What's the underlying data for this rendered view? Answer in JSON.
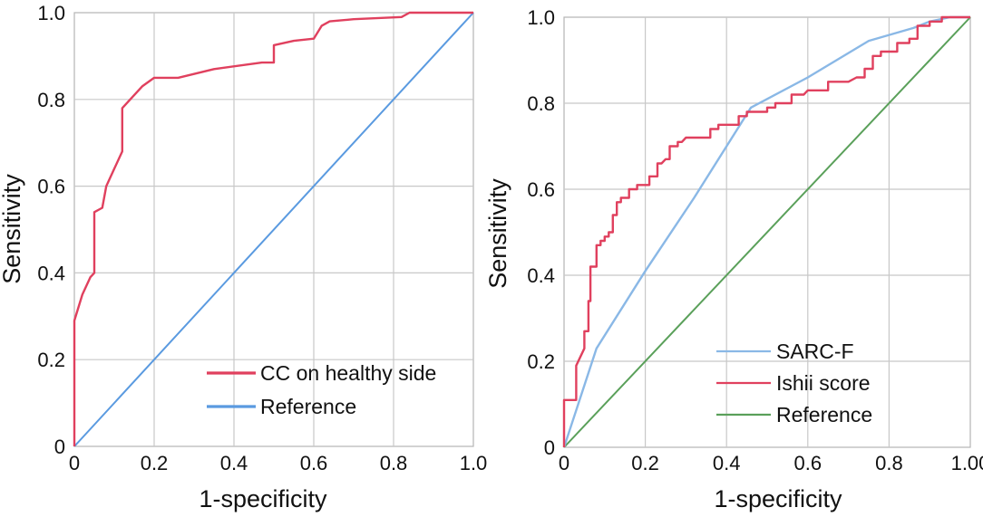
{
  "chart_data": [
    {
      "type": "line",
      "title": "",
      "xlabel": "1-specificity",
      "ylabel": "Sensitivity",
      "xlim": [
        0,
        1
      ],
      "ylim": [
        0,
        1
      ],
      "grid": true,
      "legend_position": "bottom-right",
      "x_tick_labels": [
        "0",
        "0.2",
        "0.4",
        "0.6",
        "0.8",
        "1.0"
      ],
      "y_tick_labels": [
        "0",
        "0.2",
        "0.4",
        "0.6",
        "0.8",
        "1.0"
      ],
      "series": [
        {
          "name": "CC on healthy side",
          "color": "#e0405e",
          "points": [
            [
              0,
              0
            ],
            [
              0,
              0.29
            ],
            [
              0.02,
              0.35
            ],
            [
              0.04,
              0.39
            ],
            [
              0.05,
              0.4
            ],
            [
              0.05,
              0.54
            ],
            [
              0.07,
              0.55
            ],
            [
              0.08,
              0.6
            ],
            [
              0.1,
              0.64
            ],
            [
              0.12,
              0.68
            ],
            [
              0.12,
              0.78
            ],
            [
              0.14,
              0.8
            ],
            [
              0.17,
              0.83
            ],
            [
              0.2,
              0.85
            ],
            [
              0.26,
              0.85
            ],
            [
              0.35,
              0.87
            ],
            [
              0.47,
              0.885
            ],
            [
              0.5,
              0.885
            ],
            [
              0.5,
              0.925
            ],
            [
              0.55,
              0.935
            ],
            [
              0.6,
              0.94
            ],
            [
              0.62,
              0.97
            ],
            [
              0.64,
              0.98
            ],
            [
              0.7,
              0.985
            ],
            [
              0.82,
              0.99
            ],
            [
              0.84,
              1.0
            ],
            [
              1,
              1
            ]
          ]
        },
        {
          "name": "Reference",
          "color": "#5a9ae0",
          "points": [
            [
              0,
              0
            ],
            [
              1,
              1
            ]
          ]
        }
      ]
    },
    {
      "type": "line",
      "title": "",
      "xlabel": "1-specificity",
      "ylabel": "Sensitivity",
      "xlim": [
        0,
        1
      ],
      "ylim": [
        0,
        1
      ],
      "grid": true,
      "legend_position": "bottom-right",
      "x_tick_labels": [
        "0",
        "0.2",
        "0.4",
        "0.6",
        "0.8",
        "1.00"
      ],
      "y_tick_labels": [
        "0",
        "0.2",
        "0.4",
        "0.6",
        "0.8",
        "1.0"
      ],
      "series": [
        {
          "name": "SARC-F",
          "color": "#8ab8e6",
          "points": [
            [
              0,
              0
            ],
            [
              0.08,
              0.23
            ],
            [
              0.2,
              0.41
            ],
            [
              0.32,
              0.58
            ],
            [
              0.46,
              0.79
            ],
            [
              0.6,
              0.86
            ],
            [
              0.75,
              0.945
            ],
            [
              0.86,
              0.975
            ],
            [
              0.9,
              0.99
            ],
            [
              0.95,
              1.0
            ],
            [
              1,
              1
            ]
          ]
        },
        {
          "name": "Ishii score",
          "color": "#e0405e",
          "points": [
            [
              0,
              0
            ],
            [
              0,
              0.11
            ],
            [
              0.03,
              0.11
            ],
            [
              0.03,
              0.19
            ],
            [
              0.04,
              0.21
            ],
            [
              0.05,
              0.23
            ],
            [
              0.05,
              0.27
            ],
            [
              0.06,
              0.27
            ],
            [
              0.06,
              0.34
            ],
            [
              0.065,
              0.34
            ],
            [
              0.065,
              0.42
            ],
            [
              0.08,
              0.42
            ],
            [
              0.08,
              0.47
            ],
            [
              0.09,
              0.47
            ],
            [
              0.09,
              0.48
            ],
            [
              0.1,
              0.48
            ],
            [
              0.1,
              0.49
            ],
            [
              0.11,
              0.49
            ],
            [
              0.11,
              0.5
            ],
            [
              0.12,
              0.5
            ],
            [
              0.12,
              0.54
            ],
            [
              0.13,
              0.54
            ],
            [
              0.13,
              0.57
            ],
            [
              0.14,
              0.57
            ],
            [
              0.14,
              0.58
            ],
            [
              0.16,
              0.58
            ],
            [
              0.16,
              0.6
            ],
            [
              0.18,
              0.6
            ],
            [
              0.18,
              0.61
            ],
            [
              0.21,
              0.61
            ],
            [
              0.21,
              0.63
            ],
            [
              0.23,
              0.63
            ],
            [
              0.23,
              0.66
            ],
            [
              0.24,
              0.66
            ],
            [
              0.25,
              0.67
            ],
            [
              0.26,
              0.67
            ],
            [
              0.26,
              0.7
            ],
            [
              0.28,
              0.7
            ],
            [
              0.28,
              0.71
            ],
            [
              0.29,
              0.71
            ],
            [
              0.3,
              0.72
            ],
            [
              0.36,
              0.72
            ],
            [
              0.36,
              0.74
            ],
            [
              0.38,
              0.74
            ],
            [
              0.38,
              0.75
            ],
            [
              0.43,
              0.75
            ],
            [
              0.43,
              0.77
            ],
            [
              0.45,
              0.77
            ],
            [
              0.45,
              0.78
            ],
            [
              0.5,
              0.78
            ],
            [
              0.5,
              0.79
            ],
            [
              0.52,
              0.79
            ],
            [
              0.52,
              0.8
            ],
            [
              0.56,
              0.8
            ],
            [
              0.56,
              0.82
            ],
            [
              0.59,
              0.82
            ],
            [
              0.6,
              0.83
            ],
            [
              0.65,
              0.83
            ],
            [
              0.65,
              0.85
            ],
            [
              0.7,
              0.85
            ],
            [
              0.72,
              0.86
            ],
            [
              0.74,
              0.86
            ],
            [
              0.74,
              0.88
            ],
            [
              0.76,
              0.88
            ],
            [
              0.76,
              0.91
            ],
            [
              0.78,
              0.91
            ],
            [
              0.78,
              0.92
            ],
            [
              0.82,
              0.92
            ],
            [
              0.82,
              0.94
            ],
            [
              0.85,
              0.94
            ],
            [
              0.85,
              0.95
            ],
            [
              0.87,
              0.95
            ],
            [
              0.87,
              0.98
            ],
            [
              0.9,
              0.98
            ],
            [
              0.9,
              0.99
            ],
            [
              0.93,
              0.99
            ],
            [
              0.93,
              1.0
            ],
            [
              1,
              1
            ]
          ]
        },
        {
          "name": "Reference",
          "color": "#5aa05a",
          "points": [
            [
              0,
              0
            ],
            [
              1,
              1
            ]
          ]
        }
      ]
    }
  ]
}
